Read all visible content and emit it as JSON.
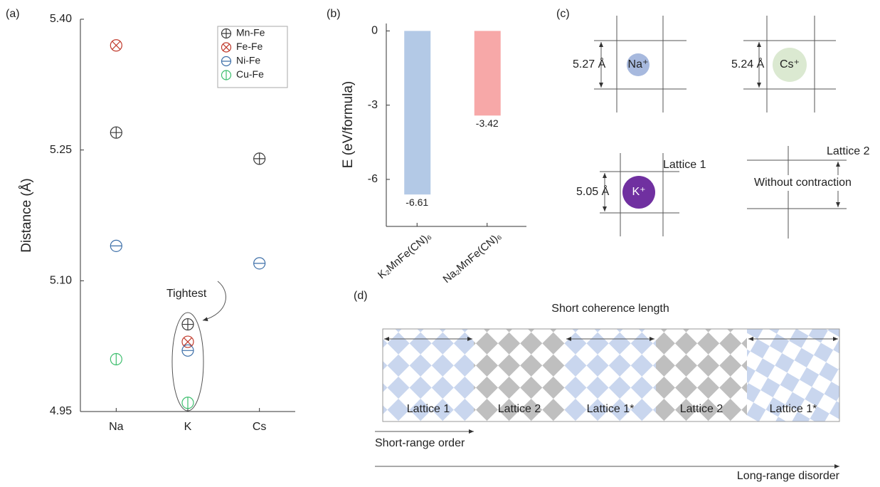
{
  "panel_labels": [
    "(a)",
    "(b)",
    "(c)",
    "(d)"
  ],
  "chart_data": [
    {
      "type": "scatter",
      "ylabel": "Distance (Å)",
      "categories": [
        "Na",
        "K",
        "Cs"
      ],
      "series": [
        {
          "name": "Mn-Fe",
          "color": "#3a3a3a",
          "marker": "plus",
          "values": [
            5.27,
            5.05,
            5.24
          ]
        },
        {
          "name": "Fe-Fe",
          "color": "#c0392b",
          "marker": "cross",
          "values": [
            5.37,
            5.03,
            null
          ]
        },
        {
          "name": "Ni-Fe",
          "color": "#3d6fa8",
          "marker": "minus",
          "values": [
            5.14,
            5.02,
            5.12
          ]
        },
        {
          "name": "Cu-Fe",
          "color": "#3fbf6f",
          "marker": "bar",
          "values": [
            5.01,
            4.96,
            null
          ]
        }
      ],
      "ylim": [
        4.95,
        5.4
      ],
      "yticks": [
        4.95,
        {
          "value": 5.1,
          "label": "5.10"
        },
        5.25,
        {
          "value": 5.4,
          "label": "5.40"
        }
      ],
      "legend": "upper right",
      "annotation": "Tightest"
    },
    {
      "type": "bar",
      "ylabel": "E (eV/formula)",
      "categories": [
        "K₂MnFe(CN)₆",
        "Na₂MnFe(CN)₆"
      ],
      "values": [
        -6.61,
        -3.42
      ],
      "colors": [
        "#b3c9e6",
        "#f7a8a8"
      ],
      "ylim": [
        -7.9,
        0.3
      ],
      "yticks": [
        0,
        -3,
        -6
      ]
    }
  ],
  "lattice_diagram": {
    "na_distance": "5.27 Å",
    "na_ion": "Na⁺",
    "cs_distance": "5.24 Å",
    "cs_ion": "Cs⁺",
    "k_distance": "5.05 Å",
    "k_ion": "K⁺",
    "lattice_1": "Lattice 1",
    "lattice_2": "Lattice 2",
    "no_contraction": "Without contraction"
  },
  "coherence_diagram": {
    "coherence": "Short coherence length",
    "tiles": [
      "Lattice 1",
      "Lattice 2",
      "Lattice 1*",
      "Lattice 2",
      "Lattice 1*"
    ],
    "short_range": "Short-range order",
    "long_range": "Long-range disorder"
  }
}
